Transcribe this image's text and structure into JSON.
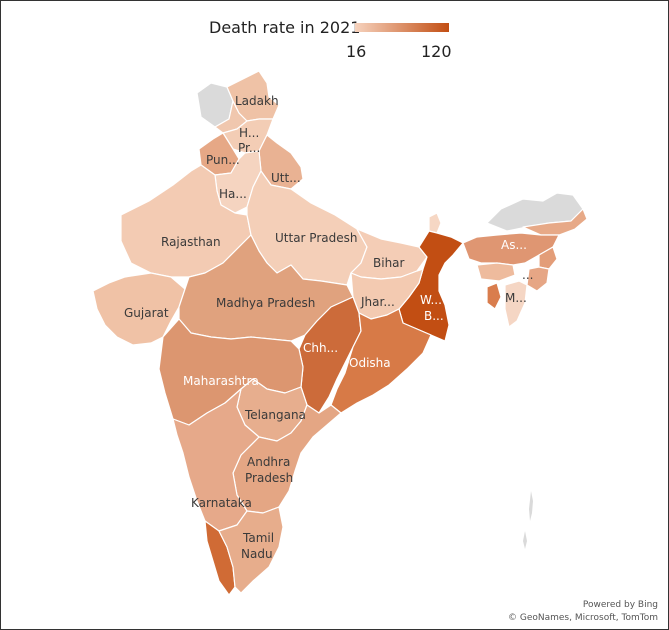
{
  "legend": {
    "title": "Death rate in 2021",
    "min_label": "16",
    "max_label": "120",
    "color_low": "#f6d2bd",
    "color_high": "#c24e13"
  },
  "colors": {
    "no_data": "#dadada",
    "border": "#ffffff",
    "background": "#ffffff"
  },
  "states": [
    {
      "id": "ladakh",
      "label": "Ladakh",
      "color": "#efc2a6"
    },
    {
      "id": "himachal",
      "label": "H...",
      "label2": "Pr...",
      "color": "#f3cdb5"
    },
    {
      "id": "punjab",
      "label": "Pun...",
      "color": "#e6a886"
    },
    {
      "id": "uttarakhand",
      "label": "Utt...",
      "color": "#e9b293"
    },
    {
      "id": "haryana",
      "label": "Ha...",
      "color": "#f5d4c0"
    },
    {
      "id": "rajasthan",
      "label": "Rajasthan",
      "color": "#f3cbb3"
    },
    {
      "id": "uttar_pradesh",
      "label": "Uttar Pradesh",
      "color": "#f4cfb8"
    },
    {
      "id": "bihar",
      "label": "Bihar",
      "color": "#f4cdb6"
    },
    {
      "id": "gujarat",
      "label": "Gujarat",
      "color": "#f0c2a6"
    },
    {
      "id": "madhya_pradesh",
      "label": "Madhya Pradesh",
      "color": "#e0a27e"
    },
    {
      "id": "jharkhand",
      "label": "Jhar...",
      "color": "#f3cab1"
    },
    {
      "id": "west_bengal",
      "label": "W...",
      "label2": "B...",
      "color": "#c24e13"
    },
    {
      "id": "chhattisgarh",
      "label": "Chh...",
      "color": "#cc6b3a"
    },
    {
      "id": "odisha",
      "label": "Odisha",
      "color": "#d77a47"
    },
    {
      "id": "maharashtra",
      "label": "Maharashtra",
      "color": "#dc9670"
    },
    {
      "id": "telangana",
      "label": "Telangana",
      "color": "#e7ae8e"
    },
    {
      "id": "andhra_pradesh",
      "label": "Andhra",
      "label2": "Pradesh",
      "color": "#e4a684"
    },
    {
      "id": "karnataka",
      "label": "Karnataka",
      "color": "#e6a98a"
    },
    {
      "id": "tamil_nadu",
      "label": "Tamil",
      "label2": "Nadu",
      "color": "#e7ad8c"
    },
    {
      "id": "kerala",
      "label": "",
      "color": "#d06b35"
    },
    {
      "id": "assam",
      "label": "As...",
      "color": "#df9672"
    },
    {
      "id": "meghalaya",
      "label": "...",
      "color": "#eebb9d"
    },
    {
      "id": "mizoram",
      "label": "M...",
      "color": "#f5d6c4"
    },
    {
      "id": "tripura",
      "label": "",
      "color": "#d97d4d"
    },
    {
      "id": "arunachal",
      "label": "",
      "color": "#e7a987"
    },
    {
      "id": "nagaland",
      "label": "",
      "color": "#e39d78"
    },
    {
      "id": "manipur",
      "label": "",
      "color": "#e6a685"
    },
    {
      "id": "sikkim",
      "label": "",
      "color": "#f6d7c4"
    },
    {
      "id": "jammu_kashmir",
      "label": "",
      "color": "#f0c7ae"
    }
  ],
  "attribution": {
    "line1": "Powered by Bing",
    "line2": "© GeoNames, Microsoft, TomTom"
  }
}
